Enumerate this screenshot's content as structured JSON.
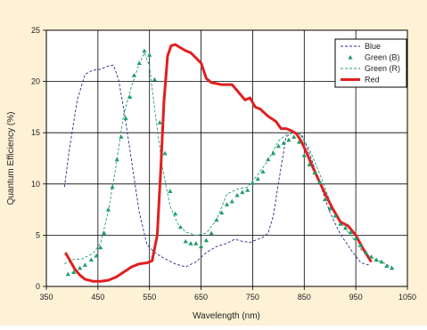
{
  "chart_data": {
    "type": "line",
    "xlabel": "Wavelength (nm)",
    "ylabel": "Quantum Efficiency (%)",
    "xlim": [
      350,
      1050
    ],
    "ylim": [
      0,
      25
    ],
    "xticks": [
      "350",
      "450",
      "550",
      "650",
      "750",
      "850",
      "950",
      "1050"
    ],
    "yticks": [
      "0",
      "5",
      "10",
      "15",
      "20",
      "25"
    ],
    "grid": true,
    "legend_position": "top-right",
    "colors": {
      "background": "#fdf1d6",
      "plot_area": "#ffffff",
      "grid": "#000000",
      "blue": "#2b2b8c",
      "green": "#1f9e6a",
      "red": "#e0201f"
    },
    "series": [
      {
        "name": "Blue",
        "style": "dashed",
        "color": "#2b2b8c",
        "x": [
          385,
          395,
          410,
          425,
          440,
          455,
          470,
          480,
          490,
          500,
          510,
          520,
          530,
          545,
          560,
          580,
          600,
          620,
          640,
          660,
          680,
          700,
          715,
          730,
          745,
          760,
          770,
          780,
          790,
          800,
          815,
          830,
          845,
          860,
          880,
          900,
          920,
          940,
          960,
          975
        ],
        "y": [
          9.7,
          13.5,
          18.2,
          20.7,
          21.1,
          21.2,
          21.5,
          21.6,
          20.2,
          17.3,
          14,
          10.6,
          7.3,
          4.1,
          3.3,
          2.7,
          2.2,
          1.9,
          2.4,
          3.3,
          3.9,
          4.2,
          4.6,
          4.4,
          4.3,
          4.6,
          4.8,
          5.2,
          6.9,
          10.1,
          14.6,
          15.1,
          14.8,
          13,
          10.1,
          7.2,
          5.1,
          3.6,
          2.3,
          2.1
        ]
      },
      {
        "name": "Green (R)",
        "style": "dashed",
        "color": "#1f9e6a",
        "x": [
          385,
          400,
          420,
          440,
          455,
          470,
          485,
          500,
          515,
          530,
          540,
          550,
          560,
          575,
          590,
          605,
          620,
          640,
          660,
          680,
          700,
          720,
          740,
          760,
          780,
          800,
          820,
          840,
          860,
          880,
          900,
          920,
          940,
          960,
          980,
          1000,
          1020
        ],
        "y": [
          2.2,
          2.6,
          2.7,
          3.2,
          4.2,
          7.3,
          11.7,
          16.8,
          19.5,
          21.7,
          22.8,
          21.5,
          17.3,
          11.6,
          7.8,
          6.1,
          5.3,
          5,
          5.2,
          6.5,
          9,
          9.5,
          9.7,
          10.9,
          12.3,
          14.2,
          15,
          15,
          13.4,
          11,
          8.3,
          6.2,
          5,
          3.6,
          2.8,
          2.4,
          1.9
        ]
      },
      {
        "name": "Green (B)",
        "style": "markers",
        "color": "#1f9e6a",
        "x": [
          392,
          403,
          415,
          425,
          437,
          447,
          455,
          462,
          470,
          478,
          487,
          495,
          504,
          512,
          520,
          530,
          540,
          550,
          560,
          570,
          580,
          590,
          600,
          610,
          620,
          630,
          640,
          650,
          660,
          670,
          680,
          690,
          700,
          710,
          720,
          730,
          740,
          750,
          760,
          770,
          780,
          790,
          800,
          810,
          820,
          830,
          840,
          850,
          860,
          870,
          880,
          890,
          900,
          910,
          920,
          930,
          940,
          950,
          960,
          970,
          980,
          990,
          1000,
          1010,
          1020
        ],
        "y": [
          1.2,
          1.4,
          1.8,
          2.1,
          2.6,
          3,
          3.8,
          5.2,
          7.5,
          9.7,
          12.4,
          14.6,
          16.4,
          18.5,
          20.6,
          21.8,
          23,
          22.6,
          20.2,
          16,
          13,
          9.3,
          7.1,
          5.8,
          4.4,
          4.2,
          4.2,
          3.9,
          4.5,
          5.2,
          6.5,
          7.2,
          8,
          8.3,
          8.9,
          9.2,
          9.4,
          10.1,
          10.5,
          11.2,
          12.4,
          13,
          13.7,
          14,
          14.3,
          14.6,
          14.1,
          12.8,
          11.9,
          11.1,
          10.2,
          8.5,
          7.6,
          6.9,
          6.1,
          5.7,
          5.3,
          4.7,
          4,
          3.3,
          2.9,
          2.6,
          2.4,
          2,
          1.8
        ]
      },
      {
        "name": "Red",
        "style": "solid-thick",
        "color": "#e0201f",
        "x": [
          387,
          395,
          405,
          415,
          425,
          440,
          455,
          470,
          485,
          500,
          515,
          530,
          545,
          555,
          565,
          572,
          578,
          585,
          592,
          600,
          610,
          620,
          630,
          640,
          650,
          660,
          670,
          690,
          710,
          725,
          735,
          745,
          755,
          765,
          780,
          795,
          805,
          815,
          825,
          835,
          845,
          855,
          865,
          875,
          890,
          905,
          920,
          935,
          950,
          965,
          980
        ],
        "y": [
          3.3,
          2.6,
          1.7,
          1.1,
          0.7,
          0.5,
          0.5,
          0.6,
          0.9,
          1.4,
          1.9,
          2.2,
          2.3,
          2.5,
          5,
          11.5,
          18,
          22.5,
          23.5,
          23.6,
          23.3,
          23,
          22.8,
          22.3,
          21.8,
          20.3,
          19.9,
          19.7,
          19.7,
          18.8,
          18.2,
          18.4,
          17.5,
          17.3,
          16.6,
          16.1,
          15.4,
          15.4,
          15.2,
          14.9,
          14.1,
          13,
          11.8,
          10.7,
          9.1,
          7.6,
          6.3,
          5.9,
          5,
          3.6,
          2.4
        ]
      }
    ],
    "legend": [
      {
        "label": "Blue",
        "style": "dashed",
        "color": "#2b2b8c"
      },
      {
        "label": "Green (B)",
        "style": "markers",
        "color": "#1f9e6a"
      },
      {
        "label": "Green (R)",
        "style": "dashed",
        "color": "#1f9e6a"
      },
      {
        "label": "Red",
        "style": "solid-thick",
        "color": "#e0201f"
      }
    ]
  }
}
